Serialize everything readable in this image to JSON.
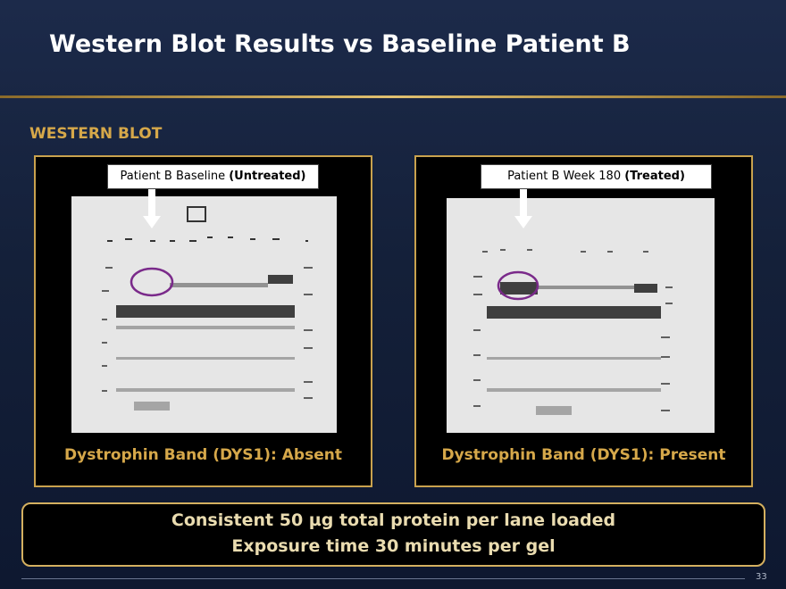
{
  "header": {
    "title": "Western Blot Results vs Baseline Patient B"
  },
  "section": {
    "heading": "WESTERN BLOT"
  },
  "panels": [
    {
      "label": {
        "text": "Patient B Baseline",
        "emphasis": "(Untreated)"
      },
      "caption": "Dystrophin Band (DYS1): Absent"
    },
    {
      "label": {
        "text": "Patient B Week 180",
        "emphasis": "(Treated)"
      },
      "caption": "Dystrophin Band (DYS1): Present"
    }
  ],
  "footer": {
    "lines": [
      "Consistent 50 µg total protein per lane loaded",
      "Exposure time 30 minutes per gel"
    ],
    "page_number": "33"
  }
}
